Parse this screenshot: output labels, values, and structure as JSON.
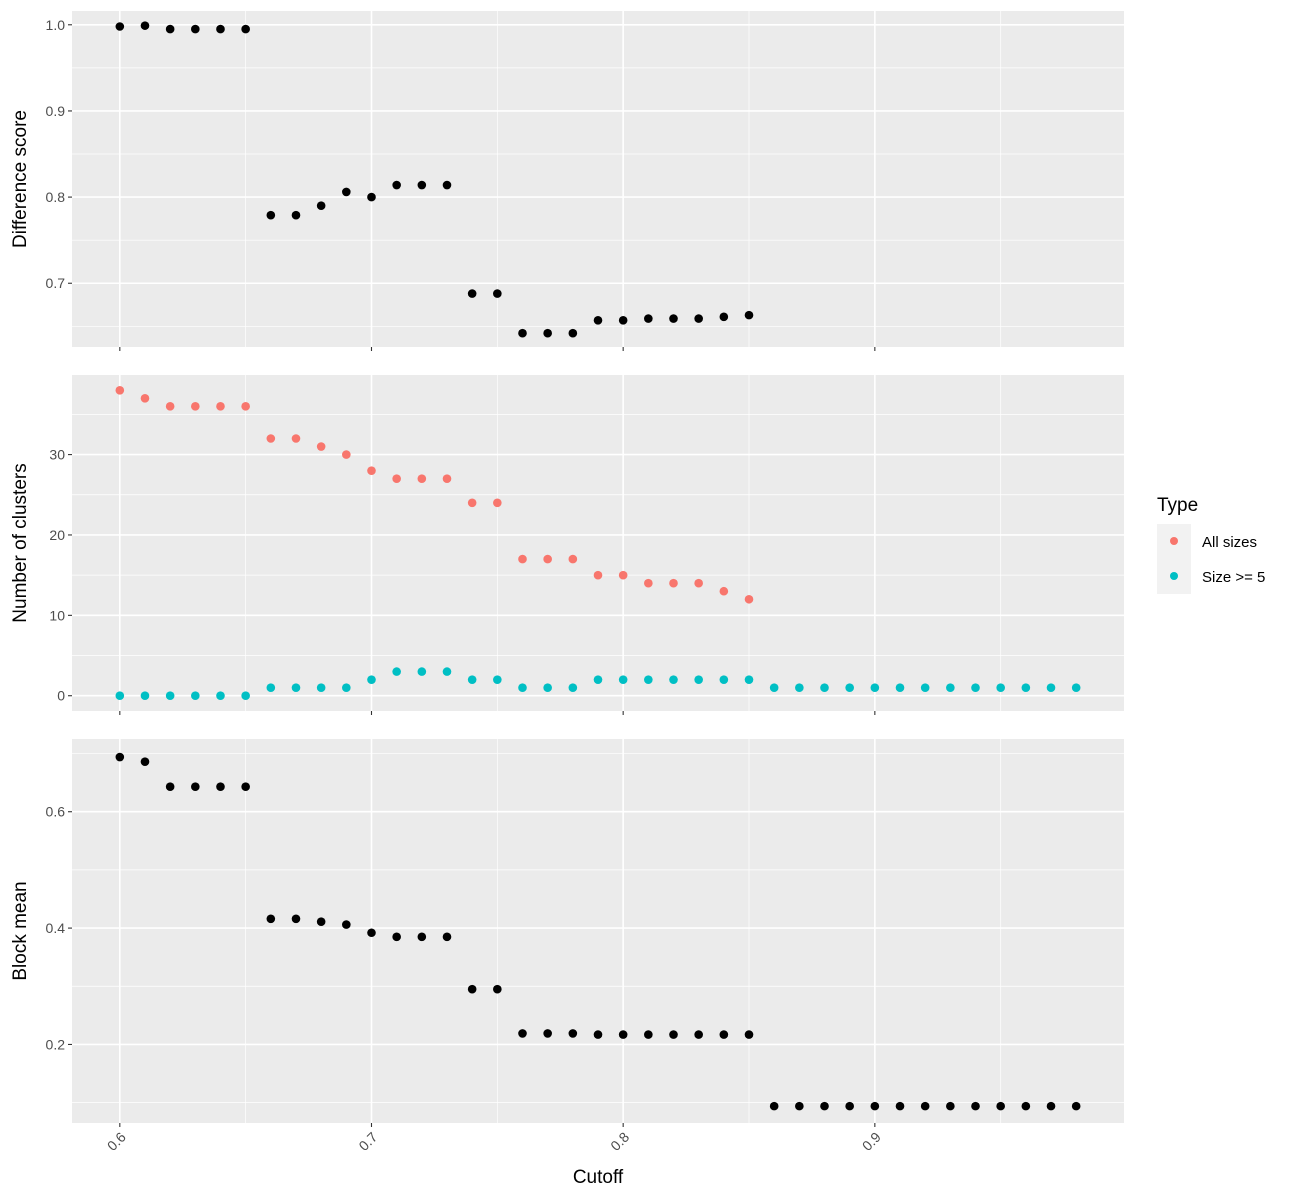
{
  "chart_data": {
    "type": "scatter",
    "xlabel": "Cutoff",
    "x_ticks": [
      0.6,
      0.7,
      0.8,
      0.9
    ],
    "x_tick_labels": [
      "0.6",
      "0.7",
      "0.8",
      "0.9"
    ],
    "xlim": [
      0.581,
      0.999
    ],
    "colors": {
      "panel_bg": "#ebebeb",
      "grid": "#ffffff",
      "point_default": "#000000"
    },
    "legend": {
      "title": "Type",
      "position": "right",
      "items": [
        {
          "label": "All sizes",
          "color": "#f8766d"
        },
        {
          "label": "Size >= 5",
          "color": "#00bfc4"
        }
      ]
    },
    "panels": [
      {
        "ylabel": "Difference score",
        "ylim": [
          0.626,
          1.016
        ],
        "y_ticks": [
          0.7,
          0.8,
          0.9,
          1.0
        ],
        "y_tick_labels": [
          "0.7",
          "0.8",
          "0.9",
          "1.0"
        ],
        "series": [
          {
            "color": "#000000",
            "x": [
              0.6,
              0.61,
              0.62,
              0.63,
              0.64,
              0.65,
              0.66,
              0.67,
              0.68,
              0.69,
              0.7,
              0.71,
              0.72,
              0.73,
              0.74,
              0.75,
              0.76,
              0.77,
              0.78,
              0.79,
              0.8,
              0.81,
              0.82,
              0.83,
              0.84,
              0.85
            ],
            "y": [
              0.998,
              0.999,
              0.995,
              0.995,
              0.995,
              0.995,
              0.779,
              0.779,
              0.79,
              0.806,
              0.8,
              0.814,
              0.814,
              0.814,
              0.688,
              0.688,
              0.642,
              0.642,
              0.642,
              0.657,
              0.657,
              0.659,
              0.659,
              0.659,
              0.661,
              0.663
            ]
          }
        ]
      },
      {
        "ylabel": "Number of clusters",
        "ylim": [
          -1.9,
          39.9
        ],
        "y_ticks": [
          0,
          10,
          20,
          30
        ],
        "y_tick_labels": [
          "0",
          "10",
          "20",
          "30"
        ],
        "series": [
          {
            "name": "All sizes",
            "color": "#f8766d",
            "x": [
              0.6,
              0.61,
              0.62,
              0.63,
              0.64,
              0.65,
              0.66,
              0.67,
              0.68,
              0.69,
              0.7,
              0.71,
              0.72,
              0.73,
              0.74,
              0.75,
              0.76,
              0.77,
              0.78,
              0.79,
              0.8,
              0.81,
              0.82,
              0.83,
              0.84,
              0.85
            ],
            "y": [
              38,
              37,
              36,
              36,
              36,
              36,
              32,
              32,
              31,
              30,
              28,
              27,
              27,
              27,
              24,
              24,
              17,
              17,
              17,
              15,
              15,
              14,
              14,
              14,
              13,
              12
            ]
          },
          {
            "name": "Size >= 5",
            "color": "#00bfc4",
            "x": [
              0.6,
              0.61,
              0.62,
              0.63,
              0.64,
              0.65,
              0.66,
              0.67,
              0.68,
              0.69,
              0.7,
              0.71,
              0.72,
              0.73,
              0.74,
              0.75,
              0.76,
              0.77,
              0.78,
              0.79,
              0.8,
              0.81,
              0.82,
              0.83,
              0.84,
              0.85,
              0.86,
              0.87,
              0.88,
              0.89,
              0.9,
              0.91,
              0.92,
              0.93,
              0.94,
              0.95,
              0.96,
              0.97,
              0.98
            ],
            "y": [
              0,
              0,
              0,
              0,
              0,
              0,
              1,
              1,
              1,
              1,
              2,
              3,
              3,
              3,
              2,
              2,
              1,
              1,
              1,
              2,
              2,
              2,
              2,
              2,
              2,
              2,
              1,
              1,
              1,
              1,
              1,
              1,
              1,
              1,
              1,
              1,
              1,
              1,
              1
            ]
          }
        ]
      },
      {
        "ylabel": "Block mean",
        "ylim": [
          0.065,
          0.725
        ],
        "y_ticks": [
          0.2,
          0.4,
          0.6
        ],
        "y_tick_labels": [
          "0.2",
          "0.4",
          "0.6"
        ],
        "series": [
          {
            "color": "#000000",
            "x": [
              0.6,
              0.61,
              0.62,
              0.63,
              0.64,
              0.65,
              0.66,
              0.67,
              0.68,
              0.69,
              0.7,
              0.71,
              0.72,
              0.73,
              0.74,
              0.75,
              0.76,
              0.77,
              0.78,
              0.79,
              0.8,
              0.81,
              0.82,
              0.83,
              0.84,
              0.85,
              0.86,
              0.87,
              0.88,
              0.89,
              0.9,
              0.91,
              0.92,
              0.93,
              0.94,
              0.95,
              0.96,
              0.97,
              0.98
            ],
            "y": [
              0.694,
              0.686,
              0.643,
              0.643,
              0.643,
              0.643,
              0.416,
              0.416,
              0.411,
              0.406,
              0.392,
              0.385,
              0.385,
              0.385,
              0.295,
              0.295,
              0.219,
              0.219,
              0.219,
              0.217,
              0.217,
              0.217,
              0.217,
              0.217,
              0.217,
              0.217,
              0.094,
              0.094,
              0.094,
              0.094,
              0.094,
              0.094,
              0.094,
              0.094,
              0.094,
              0.094,
              0.094,
              0.094,
              0.094
            ]
          }
        ]
      }
    ]
  }
}
